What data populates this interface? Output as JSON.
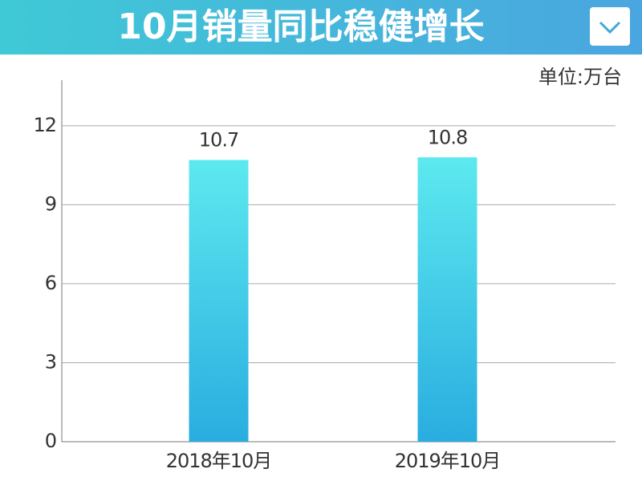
{
  "chart_data": {
    "type": "bar",
    "title": "10月销量同比稳健增长",
    "unit": "单位:万台",
    "categories": [
      "2018年10月",
      "2019年10月"
    ],
    "values": [
      10.7,
      10.8
    ],
    "color": [
      "#5de9ef",
      "#29ade0"
    ],
    "ylim": [
      0,
      13.7
    ],
    "yticks": [
      0,
      3,
      6,
      9,
      12
    ],
    "grid": true
  }
}
